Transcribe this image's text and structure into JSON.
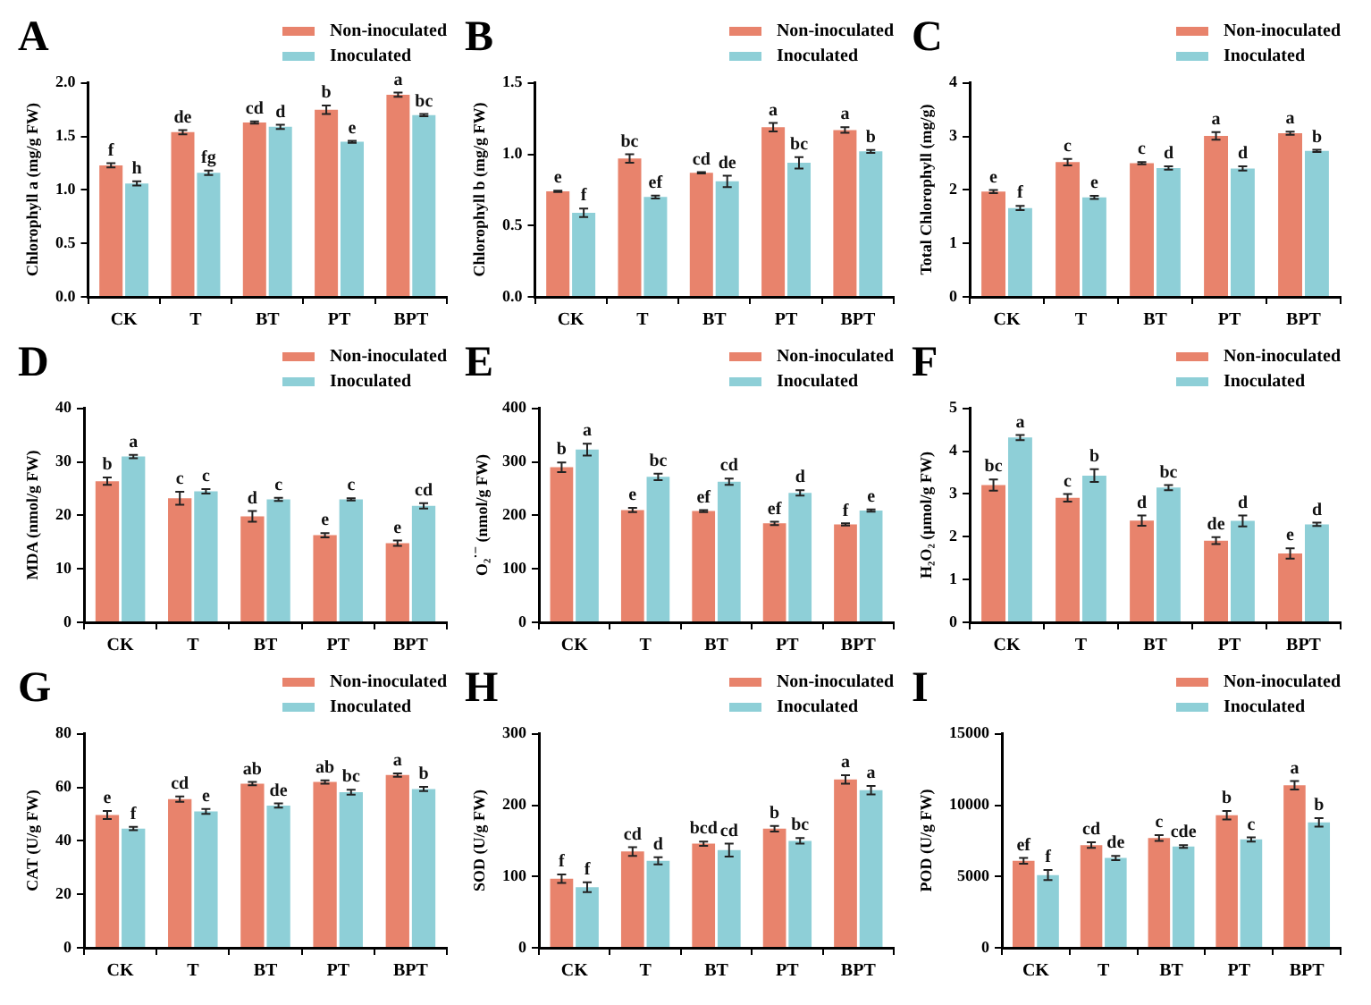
{
  "chart_data": [
    {
      "type": "bar",
      "title": "A",
      "ylabel": "Chlorophyll a (mg/g FW)",
      "categories": [
        "CK",
        "T",
        "BT",
        "PT",
        "BPT"
      ],
      "ylim": [
        0,
        2
      ],
      "yticks": [
        {
          "value": 0,
          "label": "0.0"
        },
        {
          "value": 0.5,
          "label": "0.5"
        },
        {
          "value": 1,
          "label": "1.0"
        },
        {
          "value": 1.5,
          "label": "1.5"
        },
        {
          "value": 2,
          "label": "2.0"
        }
      ],
      "legend": "top right",
      "series": [
        {
          "name": "Non-inoculated",
          "color": "#e8836c",
          "values": [
            1.23,
            1.54,
            1.63,
            1.75,
            1.89
          ],
          "errors": [
            0.02,
            0.02,
            0.01,
            0.04,
            0.02
          ],
          "value_labels": [
            "f",
            "de",
            "cd",
            "b",
            "a"
          ]
        },
        {
          "name": "Inoculated",
          "color": "#8ecfd7",
          "values": [
            1.06,
            1.16,
            1.59,
            1.45,
            1.7
          ],
          "errors": [
            0.02,
            0.02,
            0.02,
            0.01,
            0.01
          ],
          "value_labels": [
            "h",
            "fg",
            "d",
            "e",
            "bc"
          ]
        }
      ]
    },
    {
      "type": "bar",
      "title": "B",
      "ylabel": "Chlorophyll b (mg/g FW)",
      "categories": [
        "CK",
        "T",
        "BT",
        "PT",
        "BPT"
      ],
      "ylim": [
        0,
        1.5
      ],
      "yticks": [
        {
          "value": 0,
          "label": "0.0"
        },
        {
          "value": 0.5,
          "label": "0.5"
        },
        {
          "value": 1,
          "label": "1.0"
        },
        {
          "value": 1.5,
          "label": "1.5"
        }
      ],
      "legend": "top right",
      "series": [
        {
          "name": "Non-inoculated",
          "color": "#e8836c",
          "values": [
            0.74,
            0.97,
            0.87,
            1.19,
            1.17
          ],
          "errors": [
            0.005,
            0.03,
            0.005,
            0.03,
            0.02
          ],
          "value_labels": [
            "e",
            "bc",
            "cd",
            "a",
            "a"
          ]
        },
        {
          "name": "Inoculated",
          "color": "#8ecfd7",
          "values": [
            0.59,
            0.7,
            0.81,
            0.94,
            1.02
          ],
          "errors": [
            0.03,
            0.01,
            0.04,
            0.04,
            0.01
          ],
          "value_labels": [
            "f",
            "ef",
            "de",
            "bc",
            "b"
          ]
        }
      ]
    },
    {
      "type": "bar",
      "title": "C",
      "ylabel": "Total Chlorophyll (mg/g)",
      "categories": [
        "CK",
        "T",
        "BT",
        "PT",
        "BPT"
      ],
      "ylim": [
        0,
        4
      ],
      "yticks": [
        0,
        1,
        2,
        3,
        4
      ],
      "legend": "top right",
      "series": [
        {
          "name": "Non-inoculated",
          "color": "#e8836c",
          "values": [
            1.97,
            2.52,
            2.5,
            3.01,
            3.06
          ],
          "errors": [
            0.03,
            0.06,
            0.02,
            0.07,
            0.03
          ],
          "value_labels": [
            "e",
            "c",
            "c",
            "a",
            "a"
          ]
        },
        {
          "name": "Inoculated",
          "color": "#8ecfd7",
          "values": [
            1.66,
            1.86,
            2.41,
            2.4,
            2.73
          ],
          "errors": [
            0.04,
            0.03,
            0.03,
            0.04,
            0.02
          ],
          "value_labels": [
            "f",
            "e",
            "d",
            "d",
            "b"
          ]
        }
      ]
    },
    {
      "type": "bar",
      "title": "D",
      "ylabel": "MDA (nmol/g FW)",
      "categories": [
        "CK",
        "T",
        "BT",
        "PT",
        "BPT"
      ],
      "ylim": [
        0,
        40
      ],
      "yticks": [
        0,
        10,
        20,
        30,
        40
      ],
      "legend": "top right",
      "series": [
        {
          "name": "Non-inoculated",
          "color": "#e8836c",
          "values": [
            26.4,
            23.2,
            19.8,
            16.3,
            14.8
          ],
          "errors": [
            0.7,
            1.2,
            1,
            0.4,
            0.5
          ],
          "value_labels": [
            "b",
            "c",
            "d",
            "e",
            "e"
          ]
        },
        {
          "name": "Inoculated",
          "color": "#8ecfd7",
          "values": [
            31,
            24.5,
            23,
            23,
            21.8
          ],
          "errors": [
            0.3,
            0.4,
            0.3,
            0.2,
            0.5
          ],
          "value_labels": [
            "a",
            "c",
            "c",
            "c",
            "cd"
          ]
        }
      ]
    },
    {
      "type": "bar",
      "title": "E",
      "ylabel": "O₂$^{·−}$ (nmol/g FW)",
      "categories": [
        "CK",
        "T",
        "BT",
        "PT",
        "BPT"
      ],
      "ylim": [
        0,
        400
      ],
      "yticks": [
        0,
        100,
        200,
        300,
        400
      ],
      "legend": "top right",
      "series": [
        {
          "name": "Non-inoculated",
          "color": "#e8836c",
          "values": [
            290,
            210,
            208,
            185,
            183
          ],
          "errors": [
            9,
            4,
            2,
            3,
            2
          ],
          "value_labels": [
            "b",
            "e",
            "ef",
            "ef",
            "f"
          ]
        },
        {
          "name": "Inoculated",
          "color": "#8ecfd7",
          "values": [
            323,
            272,
            263,
            242,
            209
          ],
          "errors": [
            11,
            6,
            6,
            5,
            2
          ],
          "value_labels": [
            "a",
            "bc",
            "cd",
            "d",
            "e"
          ]
        }
      ]
    },
    {
      "type": "bar",
      "title": "F",
      "ylabel": "H₂O₂ (μmol/g FW)",
      "categories": [
        "CK",
        "T",
        "BT",
        "PT",
        "BPT"
      ],
      "ylim": [
        0,
        5
      ],
      "yticks": [
        0,
        1,
        2,
        3,
        4,
        5
      ],
      "legend": "top right",
      "series": [
        {
          "name": "Non-inoculated",
          "color": "#e8836c",
          "values": [
            3.21,
            2.91,
            2.38,
            1.91,
            1.61
          ],
          "errors": [
            0.13,
            0.09,
            0.12,
            0.08,
            0.12
          ],
          "value_labels": [
            "bc",
            "c",
            "d",
            "de",
            "e"
          ]
        },
        {
          "name": "Inoculated",
          "color": "#8ecfd7",
          "values": [
            4.32,
            3.43,
            3.15,
            2.37,
            2.29
          ],
          "errors": [
            0.06,
            0.15,
            0.06,
            0.13,
            0.04
          ],
          "value_labels": [
            "a",
            "b",
            "bc",
            "d",
            "d"
          ]
        }
      ]
    },
    {
      "type": "bar",
      "title": "G",
      "ylabel": "CAT (U/g FW)",
      "categories": [
        "CK",
        "T",
        "BT",
        "PT",
        "BPT"
      ],
      "ylim": [
        0,
        80
      ],
      "yticks": [
        0,
        20,
        40,
        60,
        80
      ],
      "legend": "top right",
      "series": [
        {
          "name": "Non-inoculated",
          "color": "#e8836c",
          "values": [
            49.7,
            55.6,
            61.4,
            62,
            64.6
          ],
          "errors": [
            1.5,
            1,
            0.6,
            0.6,
            0.6
          ],
          "value_labels": [
            "e",
            "cd",
            "ab",
            "ab",
            "a"
          ]
        },
        {
          "name": "Inoculated",
          "color": "#8ecfd7",
          "values": [
            44.6,
            51,
            53.2,
            58.2,
            59.4
          ],
          "errors": [
            0.6,
            0.9,
            0.8,
            0.9,
            0.8
          ],
          "value_labels": [
            "f",
            "e",
            "de",
            "bc",
            "b"
          ]
        }
      ]
    },
    {
      "type": "bar",
      "title": "H",
      "ylabel": "SOD (U/g FW)",
      "categories": [
        "CK",
        "T",
        "BT",
        "PT",
        "BPT"
      ],
      "ylim": [
        0,
        300
      ],
      "yticks": [
        0,
        100,
        200,
        300
      ],
      "legend": "top right",
      "series": [
        {
          "name": "Non-inoculated",
          "color": "#e8836c",
          "values": [
            97,
            135,
            146,
            167,
            236
          ],
          "errors": [
            6,
            6,
            3,
            4,
            6
          ],
          "value_labels": [
            "f",
            "cd",
            "bcd",
            "b",
            "a"
          ]
        },
        {
          "name": "Inoculated",
          "color": "#8ecfd7",
          "values": [
            85,
            122,
            137,
            150,
            221
          ],
          "errors": [
            7,
            5,
            9,
            4,
            6
          ],
          "value_labels": [
            "f",
            "d",
            "cd",
            "bc",
            "a"
          ]
        }
      ]
    },
    {
      "type": "bar",
      "title": "I",
      "ylabel": "POD (U/g FW)",
      "categories": [
        "CK",
        "T",
        "BT",
        "PT",
        "BPT"
      ],
      "ylim": [
        0,
        15000
      ],
      "yticks": [
        0,
        5000,
        10000,
        15000
      ],
      "legend": "top right",
      "series": [
        {
          "name": "Non-inoculated",
          "color": "#e8836c",
          "values": [
            6100,
            7200,
            7700,
            9300,
            11400
          ],
          "errors": [
            200,
            200,
            200,
            300,
            300
          ],
          "value_labels": [
            "ef",
            "cd",
            "c",
            "b",
            "a"
          ]
        },
        {
          "name": "Inoculated",
          "color": "#8ecfd7",
          "values": [
            5100,
            6300,
            7100,
            7600,
            8800
          ],
          "errors": [
            350,
            150,
            100,
            150,
            300
          ],
          "value_labels": [
            "f",
            "de",
            "cde",
            "c",
            "b"
          ]
        }
      ]
    }
  ]
}
